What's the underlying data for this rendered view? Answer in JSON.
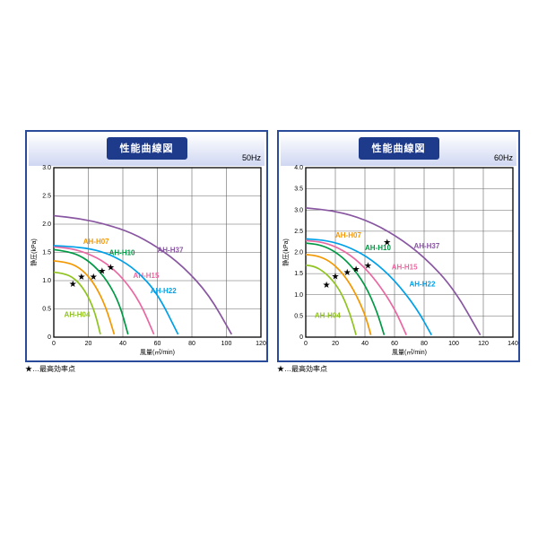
{
  "note": "★…最高効率点",
  "title": "性能曲線図",
  "xlabel": "風量(㎥/min)",
  "ylabel": "静圧(kPa)",
  "colors": {
    "H04": "#8fc31f",
    "H07": "#f39800",
    "H10": "#009944",
    "H15": "#ea68a2",
    "H22": "#00a0e9",
    "H37": "#8957a1",
    "grid": "#888888",
    "border": "#000000"
  },
  "charts": [
    {
      "hz": "50Hz",
      "xlim": [
        0,
        120
      ],
      "xtick_step": 20,
      "ylim": [
        0,
        3.0
      ],
      "ytick_step": 0.5,
      "series": [
        {
          "id": "H04",
          "label": "AH-H04",
          "lx": 6,
          "ly": 0.36,
          "pts": [
            [
              0,
              1.15
            ],
            [
              5,
              1.13
            ],
            [
              10,
              1.08
            ],
            [
              15,
              0.95
            ],
            [
              20,
              0.72
            ],
            [
              24,
              0.42
            ],
            [
              27,
              0.05
            ]
          ],
          "star": [
            11,
            0.95
          ]
        },
        {
          "id": "H07",
          "label": "AH-H07",
          "lx": 17,
          "ly": 1.65,
          "pts": [
            [
              0,
              1.35
            ],
            [
              6,
              1.33
            ],
            [
              12,
              1.28
            ],
            [
              18,
              1.15
            ],
            [
              24,
              0.92
            ],
            [
              30,
              0.55
            ],
            [
              35,
              0.05
            ]
          ],
          "star": [
            16,
            1.08
          ]
        },
        {
          "id": "H10",
          "label": "AH-H10",
          "lx": 32,
          "ly": 1.45,
          "pts": [
            [
              0,
              1.55
            ],
            [
              7,
              1.52
            ],
            [
              15,
              1.45
            ],
            [
              23,
              1.28
            ],
            [
              31,
              1.0
            ],
            [
              38,
              0.6
            ],
            [
              43,
              0.05
            ]
          ],
          "star": [
            23,
            1.08
          ]
        },
        {
          "id": "H15",
          "label": "AH-H15",
          "lx": 46,
          "ly": 1.05,
          "pts": [
            [
              0,
              1.6
            ],
            [
              10,
              1.57
            ],
            [
              20,
              1.48
            ],
            [
              30,
              1.32
            ],
            [
              40,
              1.05
            ],
            [
              50,
              0.62
            ],
            [
              58,
              0.05
            ]
          ],
          "star": [
            28,
            1.18
          ]
        },
        {
          "id": "H22",
          "label": "AH-H22",
          "lx": 56,
          "ly": 0.78,
          "pts": [
            [
              0,
              1.62
            ],
            [
              12,
              1.6
            ],
            [
              24,
              1.55
            ],
            [
              36,
              1.42
            ],
            [
              48,
              1.18
            ],
            [
              60,
              0.78
            ],
            [
              72,
              0.05
            ]
          ],
          "star": [
            33,
            1.25
          ]
        },
        {
          "id": "H37",
          "label": "AH-H37",
          "lx": 60,
          "ly": 1.5,
          "pts": [
            [
              0,
              2.15
            ],
            [
              15,
              2.1
            ],
            [
              30,
              2.0
            ],
            [
              45,
              1.85
            ],
            [
              60,
              1.6
            ],
            [
              75,
              1.25
            ],
            [
              90,
              0.75
            ],
            [
              103,
              0.05
            ]
          ]
        }
      ]
    },
    {
      "hz": "60Hz",
      "xlim": [
        0,
        140
      ],
      "xtick_step": 20,
      "ylim": [
        0,
        4.0
      ],
      "ytick_step": 0.5,
      "series": [
        {
          "id": "H04",
          "label": "AH-H04",
          "lx": 6,
          "ly": 0.45,
          "pts": [
            [
              0,
              1.7
            ],
            [
              6,
              1.67
            ],
            [
              12,
              1.55
            ],
            [
              18,
              1.35
            ],
            [
              24,
              1.05
            ],
            [
              30,
              0.55
            ],
            [
              34,
              0.05
            ]
          ],
          "star": [
            14,
            1.25
          ]
        },
        {
          "id": "H07",
          "label": "AH-H07",
          "lx": 20,
          "ly": 2.35,
          "pts": [
            [
              0,
              1.95
            ],
            [
              8,
              1.92
            ],
            [
              16,
              1.8
            ],
            [
              24,
              1.55
            ],
            [
              32,
              1.15
            ],
            [
              40,
              0.55
            ],
            [
              44,
              0.05
            ]
          ],
          "star": [
            20,
            1.45
          ]
        },
        {
          "id": "H10",
          "label": "AH-H10",
          "lx": 40,
          "ly": 2.05,
          "pts": [
            [
              0,
              2.22
            ],
            [
              10,
              2.18
            ],
            [
              20,
              2.02
            ],
            [
              30,
              1.72
            ],
            [
              40,
              1.25
            ],
            [
              48,
              0.62
            ],
            [
              53,
              0.05
            ]
          ],
          "star": [
            28,
            1.55
          ]
        },
        {
          "id": "H15",
          "label": "AH-H15",
          "lx": 58,
          "ly": 1.6,
          "pts": [
            [
              0,
              2.28
            ],
            [
              12,
              2.24
            ],
            [
              24,
              2.08
            ],
            [
              36,
              1.78
            ],
            [
              48,
              1.32
            ],
            [
              60,
              0.68
            ],
            [
              68,
              0.05
            ]
          ],
          "star": [
            34,
            1.62
          ]
        },
        {
          "id": "H22",
          "label": "AH-H22",
          "lx": 70,
          "ly": 1.2,
          "pts": [
            [
              0,
              2.32
            ],
            [
              15,
              2.28
            ],
            [
              30,
              2.12
            ],
            [
              45,
              1.82
            ],
            [
              60,
              1.35
            ],
            [
              75,
              0.68
            ],
            [
              85,
              0.05
            ]
          ],
          "star": [
            42,
            1.7
          ]
        },
        {
          "id": "H37",
          "label": "AH-H37",
          "lx": 73,
          "ly": 2.1,
          "pts": [
            [
              0,
              3.05
            ],
            [
              20,
              2.98
            ],
            [
              40,
              2.78
            ],
            [
              60,
              2.42
            ],
            [
              80,
              1.9
            ],
            [
              100,
              1.15
            ],
            [
              118,
              0.05
            ]
          ],
          "star": [
            55,
            2.25
          ]
        }
      ]
    }
  ]
}
